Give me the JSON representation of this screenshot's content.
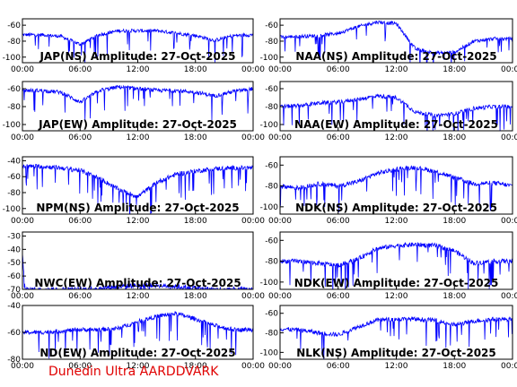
{
  "figure": {
    "credit": "Dunedin Ultra AARDDVARK",
    "series_color": "#0000ff"
  },
  "chart_data": [
    {
      "type": "line",
      "title": "JAP(NS) Amplitude: 27-Oct-2025",
      "x_ticks": [
        "00:00",
        "06:00",
        "12:00",
        "18:00",
        "00:00"
      ],
      "y_ticks": [
        "-60",
        "-80",
        "-100"
      ],
      "ylim": [
        -107,
        -52
      ],
      "series": [
        {
          "x": [
            0,
            2,
            4,
            6,
            8,
            10,
            12,
            14,
            16,
            18,
            20,
            22,
            24
          ],
          "y": [
            -72,
            -72,
            -74,
            -84,
            -72,
            -67,
            -67,
            -67,
            -70,
            -73,
            -79,
            -73,
            -72
          ]
        }
      ]
    },
    {
      "type": "line",
      "title": "NAA(NS) Amplitude: 27-Oct-2025",
      "x_ticks": [
        "00:00",
        "06:00",
        "12:00",
        "18:00",
        "00:00"
      ],
      "y_ticks": [
        "-60",
        "-80",
        "-100"
      ],
      "ylim": [
        -107,
        -52
      ],
      "series": [
        {
          "x": [
            0,
            2,
            4,
            6,
            8,
            10,
            12,
            14,
            16,
            18,
            20,
            22,
            24
          ],
          "y": [
            -75,
            -74,
            -73,
            -70,
            -62,
            -56,
            -58,
            -90,
            -95,
            -94,
            -80,
            -77,
            -77
          ]
        }
      ]
    },
    {
      "type": "line",
      "title": "JAP(EW) Amplitude: 27-Oct-2025",
      "x_ticks": [
        "00:00",
        "06:00",
        "12:00",
        "18:00",
        "00:00"
      ],
      "y_ticks": [
        "-60",
        "-80",
        "-100"
      ],
      "ylim": [
        -107,
        -52
      ],
      "series": [
        {
          "x": [
            0,
            2,
            4,
            6,
            8,
            10,
            12,
            14,
            16,
            18,
            20,
            22,
            24
          ],
          "y": [
            -62,
            -62,
            -64,
            -75,
            -62,
            -58,
            -60,
            -62,
            -62,
            -64,
            -68,
            -63,
            -60
          ]
        }
      ]
    },
    {
      "type": "line",
      "title": "NAA(EW) Amplitude: 27-Oct-2025",
      "x_ticks": [
        "00:00",
        "06:00",
        "12:00",
        "18:00",
        "00:00"
      ],
      "y_ticks": [
        "-60",
        "-80",
        "-100"
      ],
      "ylim": [
        -107,
        -52
      ],
      "series": [
        {
          "x": [
            0,
            2,
            4,
            6,
            8,
            10,
            12,
            14,
            16,
            18,
            20,
            22,
            24
          ],
          "y": [
            -80,
            -79,
            -76,
            -75,
            -72,
            -68,
            -70,
            -86,
            -90,
            -88,
            -82,
            -80,
            -80
          ]
        }
      ]
    },
    {
      "type": "line",
      "title": "NPM(NS) Amplitude: 27-Oct-2025",
      "x_ticks": [
        "00:00",
        "06:00",
        "12:00",
        "18:00",
        "00:00"
      ],
      "y_ticks": [
        "-40",
        "-60",
        "-80",
        "-100"
      ],
      "ylim": [
        -107,
        -35
      ],
      "series": [
        {
          "x": [
            0,
            2,
            4,
            6,
            8,
            10,
            12,
            14,
            16,
            18,
            20,
            22,
            24
          ],
          "y": [
            -47,
            -47,
            -49,
            -52,
            -62,
            -76,
            -85,
            -67,
            -57,
            -53,
            -50,
            -49,
            -49
          ]
        }
      ]
    },
    {
      "type": "line",
      "title": "NDK(NS) Amplitude: 27-Oct-2025",
      "x_ticks": [
        "00:00",
        "06:00",
        "12:00",
        "18:00",
        "00:00"
      ],
      "y_ticks": [
        "-60",
        "-80",
        "-100"
      ],
      "ylim": [
        -107,
        -52
      ],
      "series": [
        {
          "x": [
            0,
            2,
            4,
            6,
            8,
            10,
            12,
            14,
            16,
            18,
            20,
            22,
            24
          ],
          "y": [
            -80,
            -82,
            -78,
            -80,
            -76,
            -68,
            -64,
            -62,
            -66,
            -72,
            -78,
            -77,
            -80
          ]
        }
      ]
    },
    {
      "type": "line",
      "title": "NWC(EW) Amplitude: 27-Oct-2025",
      "x_ticks": [
        "00:00",
        "06:00",
        "12:00",
        "18:00",
        "00:00"
      ],
      "y_ticks": [
        "-30",
        "-40",
        "-50",
        "-60",
        "-70"
      ],
      "ylim": [
        -70,
        -27
      ],
      "series": [
        {
          "x": [
            0,
            0.1,
            0.3,
            2,
            4,
            6,
            8,
            10,
            12,
            14,
            16,
            18,
            20,
            22,
            24
          ],
          "y": [
            -42,
            -55,
            -70,
            -70,
            -70,
            -70,
            -69,
            -68,
            -67,
            -67,
            -68,
            -69,
            -70,
            -70,
            -70
          ]
        }
      ]
    },
    {
      "type": "line",
      "title": "NDK(EW) Amplitude: 27-Oct-2025",
      "x_ticks": [
        "00:00",
        "06:00",
        "12:00",
        "18:00",
        "00:00"
      ],
      "y_ticks": [
        "-60",
        "-80",
        "-100"
      ],
      "ylim": [
        -107,
        -52
      ],
      "series": [
        {
          "x": [
            0,
            2,
            4,
            6,
            8,
            10,
            12,
            14,
            16,
            18,
            20,
            22,
            24
          ],
          "y": [
            -80,
            -80,
            -82,
            -84,
            -78,
            -68,
            -65,
            -64,
            -65,
            -70,
            -82,
            -80,
            -80
          ]
        }
      ]
    },
    {
      "type": "line",
      "title": "ND(EW) Amplitude: 27-Oct-2025",
      "x_ticks": [
        "00:00",
        "06:00",
        "12:00",
        "18:00",
        "00:00"
      ],
      "y_ticks": [
        "-40",
        "-60",
        "-80"
      ],
      "ylim": [
        -80,
        -40
      ],
      "series": [
        {
          "x": [
            0,
            2,
            4,
            6,
            8,
            10,
            12,
            14,
            16,
            18,
            20,
            22,
            24
          ],
          "y": [
            -60,
            -60,
            -59,
            -58,
            -58,
            -57,
            -52,
            -48,
            -46,
            -50,
            -55,
            -58,
            -58
          ]
        }
      ]
    },
    {
      "type": "line",
      "title": "NLK(NS) Amplitude: 27-Oct-2025",
      "x_ticks": [
        "00:00",
        "06:00",
        "12:00",
        "18:00",
        "00:00"
      ],
      "y_ticks": [
        "-60",
        "-80",
        "-100"
      ],
      "ylim": [
        -107,
        -52
      ],
      "series": [
        {
          "x": [
            0,
            2,
            4,
            6,
            8,
            10,
            12,
            14,
            16,
            18,
            20,
            22,
            24
          ],
          "y": [
            -76,
            -77,
            -80,
            -82,
            -74,
            -67,
            -66,
            -66,
            -67,
            -72,
            -68,
            -66,
            -66
          ]
        }
      ]
    }
  ]
}
